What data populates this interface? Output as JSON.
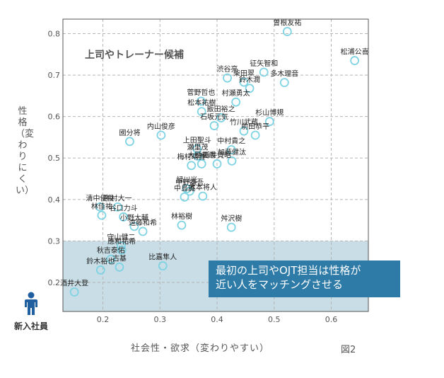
{
  "chart_data": {
    "type": "scatter",
    "xlabel": "社会性・欲求（変わりやすい）",
    "ylabel": "性格（変わりにくい）",
    "xlim": [
      0.13,
      0.665
    ],
    "ylim": [
      0.13,
      0.835
    ],
    "xticks": [
      "0.2",
      "0.3",
      "0.4",
      "0.5",
      "0.6"
    ],
    "yticks": [
      "0.2",
      "0.3",
      "0.4",
      "0.5",
      "0.6",
      "0.7",
      "0.8"
    ],
    "grid": true,
    "highlight_band": {
      "y_from": 0.13,
      "y_to": 0.3
    },
    "region_label": "上司やトレーナー候補",
    "marker_color": "#7fd3e3",
    "band_color": "#c8dde6",
    "points": [
      {
        "label": "曽根友祐",
        "x": 0.523,
        "y": 0.805
      },
      {
        "label": "松浦公喜",
        "x": 0.641,
        "y": 0.735
      },
      {
        "label": "征矢智和",
        "x": 0.482,
        "y": 0.707
      },
      {
        "label": "渋谷亮",
        "x": 0.418,
        "y": 0.693
      },
      {
        "label": "柴田翠",
        "x": 0.447,
        "y": 0.683
      },
      {
        "label": "多木理音",
        "x": 0.518,
        "y": 0.682
      },
      {
        "label": "鈴木潤",
        "x": 0.457,
        "y": 0.668
      },
      {
        "label": "菅野哲也",
        "x": 0.372,
        "y": 0.637
      },
      {
        "label": "村瀬勇太",
        "x": 0.433,
        "y": 0.635
      },
      {
        "label": "松本祐樹",
        "x": 0.373,
        "y": 0.612
      },
      {
        "label": "杉山博規",
        "x": 0.492,
        "y": 0.588
      },
      {
        "label": "飯田裕之",
        "x": 0.407,
        "y": 0.597
      },
      {
        "label": "石坂元気",
        "x": 0.395,
        "y": 0.578
      },
      {
        "label": "竹川武蔵",
        "x": 0.447,
        "y": 0.565
      },
      {
        "label": "前田恭平",
        "x": 0.467,
        "y": 0.555
      },
      {
        "label": "内山俊彦",
        "x": 0.302,
        "y": 0.555
      },
      {
        "label": "國分将",
        "x": 0.247,
        "y": 0.54
      },
      {
        "label": "上田聖斗",
        "x": 0.365,
        "y": 0.522
      },
      {
        "label": "中村貴之",
        "x": 0.425,
        "y": 0.52
      },
      {
        "label": "瀬里茂",
        "x": 0.366,
        "y": 0.505
      },
      {
        "label": "加藤健汰",
        "x": 0.426,
        "y": 0.493
      },
      {
        "label": "大腰祐哉",
        "x": 0.373,
        "y": 0.486
      },
      {
        "label": "新井賀昭",
        "x": 0.4,
        "y": 0.486
      },
      {
        "label": "梅村晴貴",
        "x": 0.355,
        "y": 0.482
      },
      {
        "label": "緑川光",
        "x": 0.347,
        "y": 0.426
      },
      {
        "label": "中野謙吾",
        "x": 0.352,
        "y": 0.42
      },
      {
        "label": "中島誠",
        "x": 0.343,
        "y": 0.406
      },
      {
        "label": "木本将人",
        "x": 0.375,
        "y": 0.408
      },
      {
        "label": "清中優俊",
        "x": 0.195,
        "y": 0.382
      },
      {
        "label": "中村大一",
        "x": 0.226,
        "y": 0.382
      },
      {
        "label": "林佳祐",
        "x": 0.198,
        "y": 0.362
      },
      {
        "label": "谷口力斗",
        "x": 0.236,
        "y": 0.358
      },
      {
        "label": "小野大輔",
        "x": 0.255,
        "y": 0.335
      },
      {
        "label": "遠藤和希",
        "x": 0.27,
        "y": 0.323
      },
      {
        "label": "林裕樹",
        "x": 0.338,
        "y": 0.338
      },
      {
        "label": "舛沢樹",
        "x": 0.425,
        "y": 0.333
      },
      {
        "label": "守山健二",
        "x": 0.232,
        "y": 0.288
      },
      {
        "label": "應和祐希",
        "x": 0.233,
        "y": 0.278
      },
      {
        "label": "秋吉泰佑",
        "x": 0.214,
        "y": 0.256
      },
      {
        "label": "鈴木裕也",
        "x": 0.196,
        "y": 0.23
      },
      {
        "label": "古基",
        "x": 0.229,
        "y": 0.237
      },
      {
        "label": "比嘉隼人",
        "x": 0.305,
        "y": 0.24
      },
      {
        "label": "酒井大登",
        "x": 0.15,
        "y": 0.177
      }
    ]
  },
  "callout": {
    "line1": "最初の上司やOJT担当は性格が",
    "line2": "近い人をマッチングさせる"
  },
  "newcomer_label": "新入社員",
  "figure_label": "図2"
}
